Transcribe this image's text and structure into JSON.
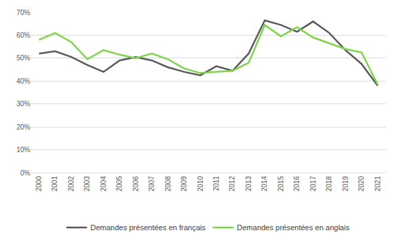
{
  "chart_data": {
    "type": "line",
    "categories": [
      "2000",
      "2001",
      "2002",
      "2003",
      "2004",
      "2005",
      "2006",
      "2007",
      "2008",
      "2009",
      "2010",
      "2011",
      "2012",
      "2013",
      "2014",
      "2015",
      "2016",
      "2017",
      "2018",
      "2019",
      "2020",
      "2021"
    ],
    "series": [
      {
        "name": "Demandes présentées en français",
        "color": "#595959",
        "line_style": "solid",
        "values": [
          52,
          53,
          50.5,
          47,
          44,
          49,
          50.5,
          49,
          46,
          44,
          42.5,
          46.5,
          44.5,
          52,
          66.5,
          64.5,
          61.5,
          66,
          61,
          53.5,
          47.5,
          38
        ]
      },
      {
        "name": "Demandes présentées en anglais",
        "color": "#7ed348",
        "line_style": "solid",
        "values": [
          58,
          61,
          57,
          49.5,
          53.5,
          51.5,
          50,
          52,
          49.5,
          45.5,
          43.5,
          44,
          44.5,
          48,
          64.5,
          59.5,
          63.5,
          59,
          56.5,
          54,
          52.5,
          38.5
        ]
      }
    ],
    "ylim": [
      0,
      70
    ],
    "yticks": [
      {
        "value": 0,
        "label": "0%"
      },
      {
        "value": 10,
        "label": "10%"
      },
      {
        "value": 20,
        "label": "20%"
      },
      {
        "value": 30,
        "label": "30%"
      },
      {
        "value": 40,
        "label": "40%"
      },
      {
        "value": 50,
        "label": "50%"
      },
      {
        "value": 60,
        "label": "60%"
      },
      {
        "value": 70,
        "label": "70%"
      }
    ],
    "grid": true,
    "legend": "bottom"
  }
}
